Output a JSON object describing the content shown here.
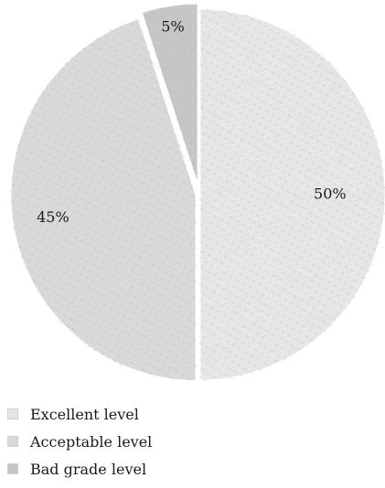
{
  "chart_data": {
    "type": "pie",
    "title": "",
    "categories": [
      "Excellent level",
      "Acceptable level",
      "Bad grade level"
    ],
    "values": [
      50,
      45,
      5
    ],
    "labels": [
      "50%",
      "45%",
      "5%"
    ],
    "colors": [
      "#e6e6e6",
      "#d9d9d9",
      "#c6c6c6"
    ],
    "legend_position": "bottom-left",
    "grid": false
  }
}
